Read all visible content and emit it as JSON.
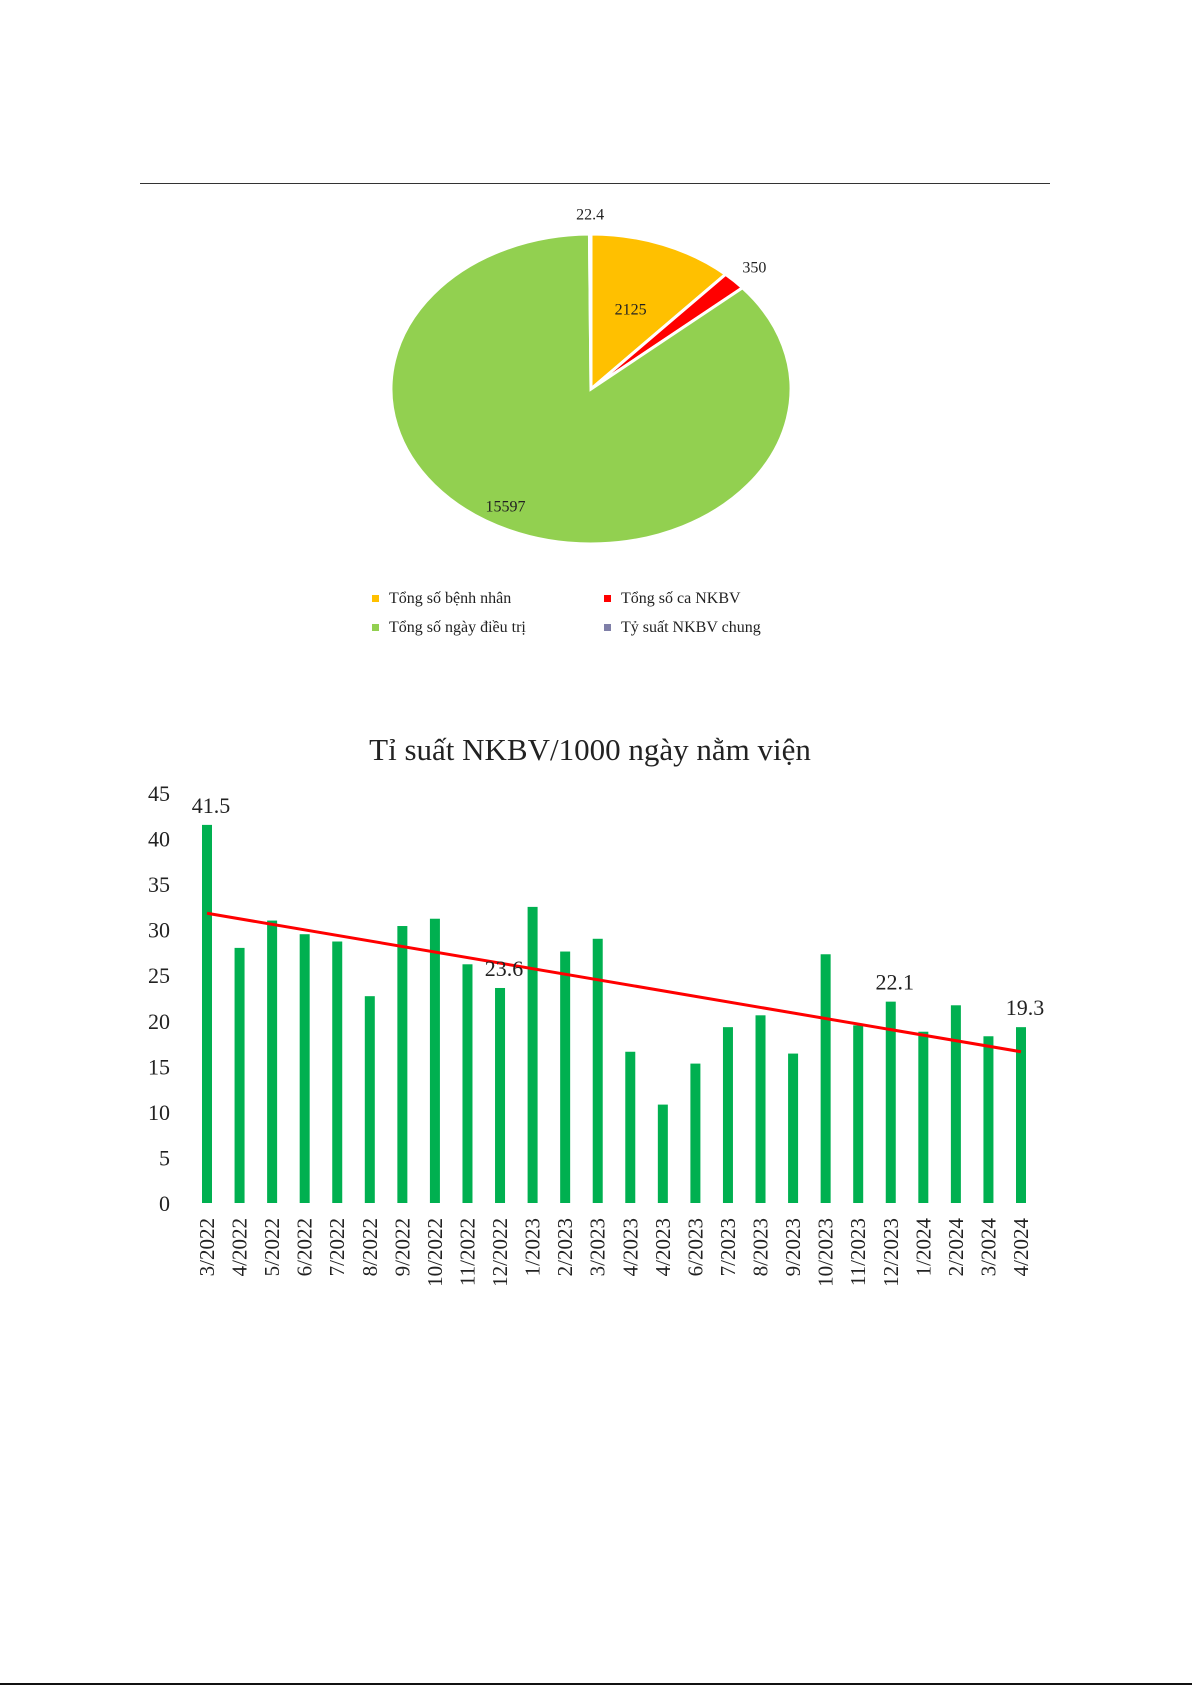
{
  "chart_data": [
    {
      "type": "pie",
      "labels": [
        "Tổng số bệnh nhân",
        "Tổng số ca NKBV",
        "Tổng số ngày điều trị",
        "Tỷ suất NKBV chung"
      ],
      "values": [
        2125,
        350,
        15597,
        22.4
      ],
      "data_labels": [
        "2125",
        "350",
        "15597",
        "22.4"
      ],
      "colors": [
        "#FFC000",
        "#FF0000",
        "#92D050",
        "#7F7FA8"
      ],
      "legend": "bottom"
    },
    {
      "type": "bar",
      "title": "Tỉ suất NKBV/1000 ngày nằm viện",
      "categories": [
        "3/2022",
        "4/2022",
        "5/2022",
        "6/2022",
        "7/2022",
        "8/2022",
        "9/2022",
        "10/2022",
        "11/2022",
        "12/2022",
        "1/2023",
        "2/2023",
        "3/2023",
        "4/2023",
        "4/2023",
        "6/2023",
        "7/2023",
        "8/2023",
        "9/2023",
        "10/2023",
        "11/2023",
        "12/2023",
        "1/2024",
        "2/2024",
        "3/2024",
        "4/2024"
      ],
      "values": [
        41.5,
        28,
        31,
        29.5,
        28.7,
        22.7,
        30.4,
        31.2,
        26.2,
        23.6,
        32.5,
        27.6,
        29,
        16.6,
        10.8,
        15.3,
        19.3,
        20.6,
        16.4,
        27.3,
        19.5,
        22.1,
        18.8,
        21.7,
        18.3,
        19.3
      ],
      "data_labels": [
        {
          "index": 0,
          "text": "41.5"
        },
        {
          "index": 9,
          "text": "23.6"
        },
        {
          "index": 21,
          "text": "22.1"
        },
        {
          "index": 25,
          "text": "19.3"
        }
      ],
      "trendline": {
        "start": 31.8,
        "end": 16.6
      },
      "ylim": [
        0,
        45
      ],
      "yticks": [
        0,
        5,
        10,
        15,
        20,
        25,
        30,
        35,
        40,
        45
      ],
      "xlabel": "",
      "ylabel": "",
      "grid": false,
      "colors": {
        "bar": "#00B050",
        "trend": "#FF0000"
      }
    }
  ]
}
